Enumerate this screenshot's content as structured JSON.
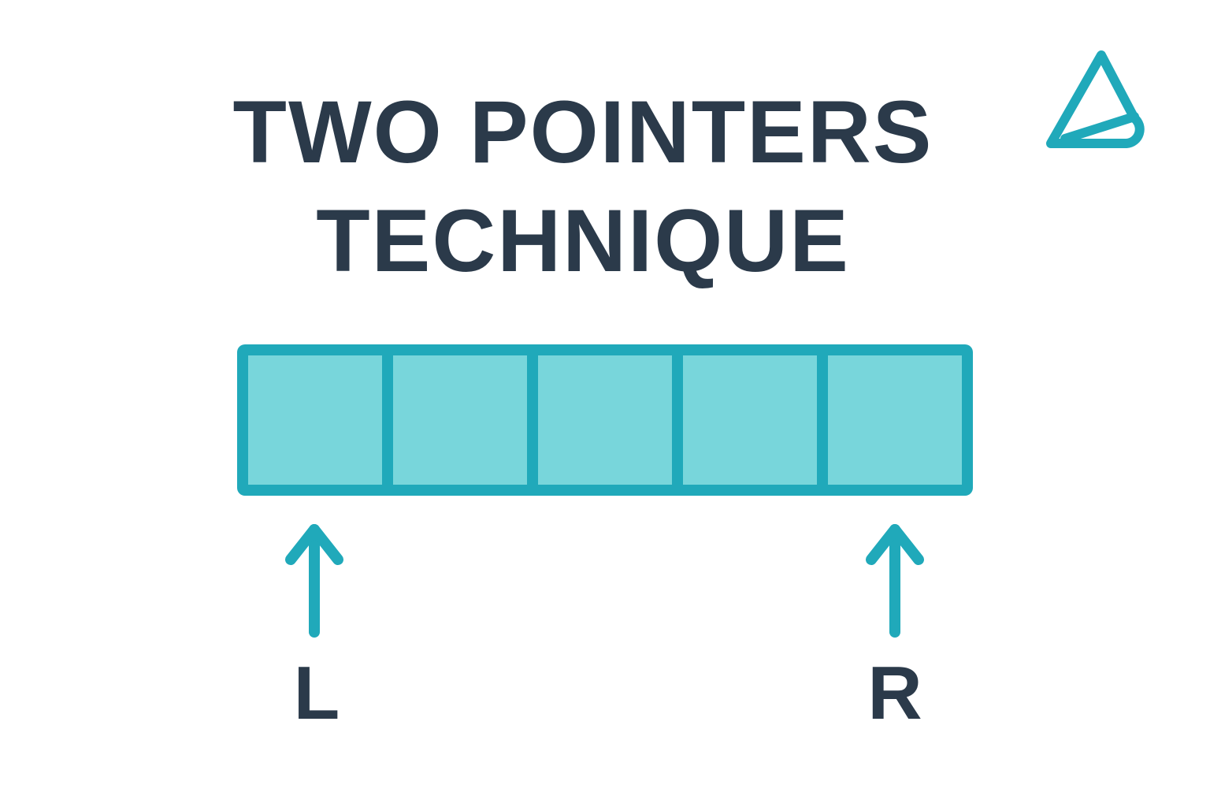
{
  "title": {
    "line1": "TWO POINTERS",
    "line2": "TECHNIQUE"
  },
  "logo": {
    "icon": "triangle-logo-icon"
  },
  "array": {
    "cell_count": 5
  },
  "pointers": {
    "left": {
      "label": "L",
      "icon": "arrow-up-icon"
    },
    "right": {
      "label": "R",
      "icon": "arrow-up-icon"
    }
  },
  "colors": {
    "accent": "#20a9ba",
    "cell_fill": "#78d6db",
    "text": "#2b3a4a",
    "background": "#ffffff"
  }
}
